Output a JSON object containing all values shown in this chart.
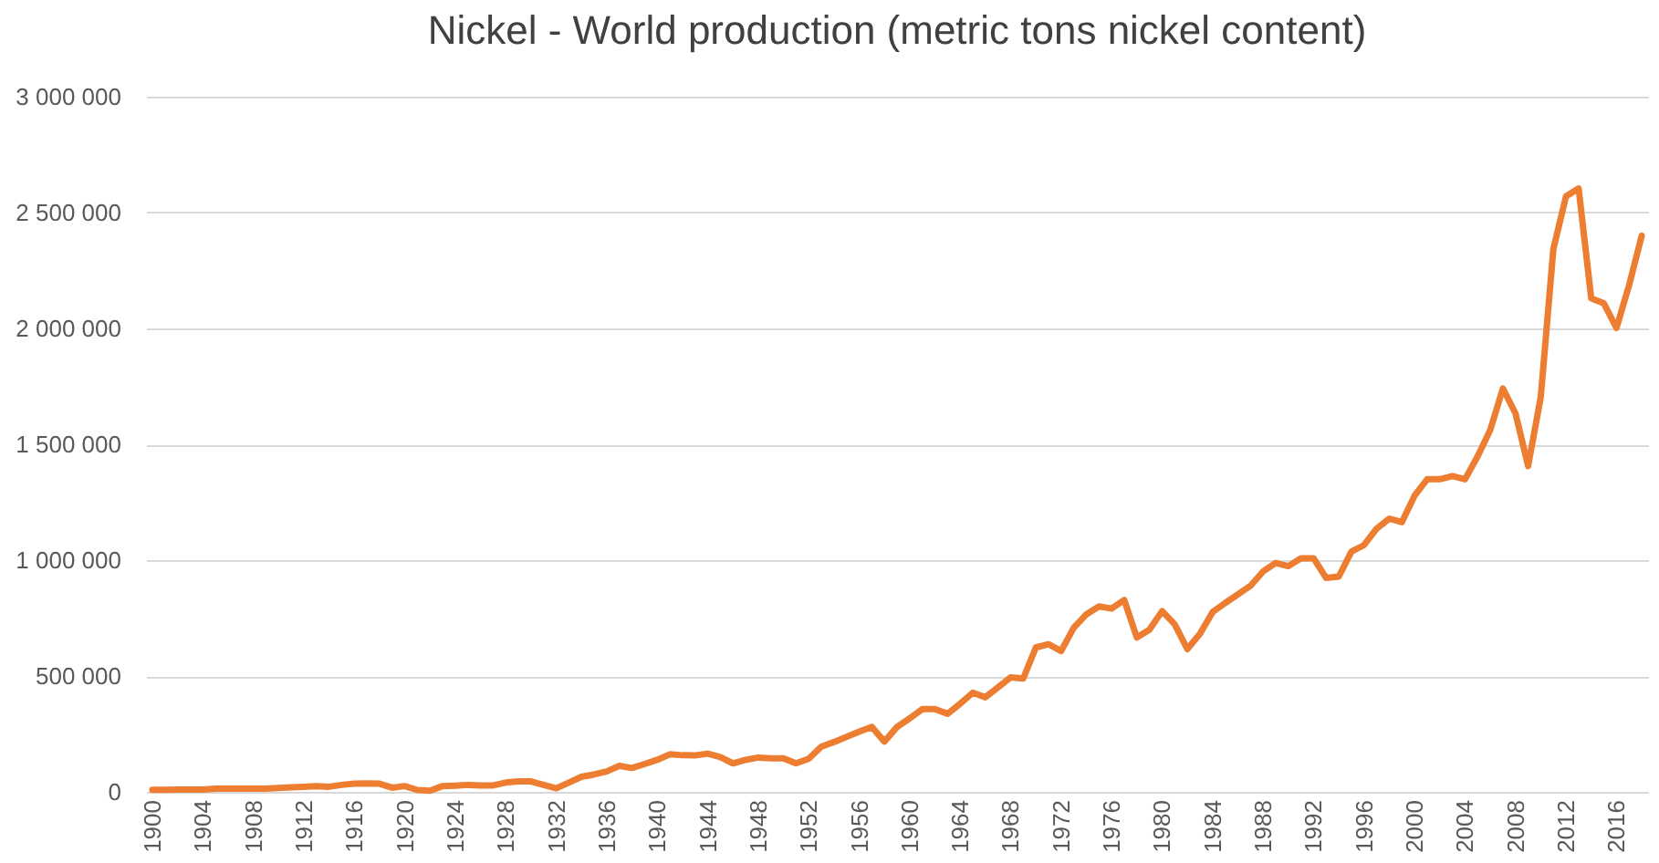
{
  "chart_data": {
    "type": "line",
    "title": "Nickel - World production (metric tons nickel content)",
    "x": [
      1900,
      1901,
      1902,
      1903,
      1904,
      1905,
      1906,
      1907,
      1908,
      1909,
      1910,
      1911,
      1912,
      1913,
      1914,
      1915,
      1916,
      1917,
      1918,
      1919,
      1920,
      1921,
      1922,
      1923,
      1924,
      1925,
      1926,
      1927,
      1928,
      1929,
      1930,
      1931,
      1932,
      1933,
      1934,
      1935,
      1936,
      1937,
      1938,
      1939,
      1940,
      1941,
      1942,
      1943,
      1944,
      1945,
      1946,
      1947,
      1948,
      1949,
      1950,
      1951,
      1952,
      1953,
      1954,
      1955,
      1956,
      1957,
      1958,
      1959,
      1960,
      1961,
      1962,
      1963,
      1964,
      1965,
      1966,
      1967,
      1968,
      1969,
      1970,
      1971,
      1972,
      1973,
      1974,
      1975,
      1976,
      1977,
      1978,
      1979,
      1980,
      1981,
      1982,
      1983,
      1984,
      1985,
      1986,
      1987,
      1988,
      1989,
      1990,
      1991,
      1992,
      1993,
      1994,
      1995,
      1996,
      1997,
      1998,
      1999,
      2000,
      2001,
      2002,
      2003,
      2004,
      2005,
      2006,
      2007,
      2008,
      2009,
      2010,
      2011,
      2012,
      2013,
      2014,
      2015,
      2016,
      2017,
      2018
    ],
    "series": [
      {
        "color": "#ed7d31",
        "values": [
          9000,
          9000,
          10000,
          10000,
          10000,
          14000,
          14000,
          14000,
          14000,
          14000,
          17000,
          20000,
          22000,
          25000,
          22000,
          30000,
          35000,
          36000,
          35000,
          18000,
          25000,
          8000,
          5000,
          25000,
          27000,
          30000,
          28000,
          28000,
          40000,
          45000,
          45000,
          30000,
          15000,
          40000,
          65000,
          75000,
          88000,
          112000,
          103000,
          120000,
          138000,
          162000,
          158000,
          157000,
          165000,
          150000,
          123000,
          138000,
          148000,
          145000,
          145000,
          123000,
          143000,
          195000,
          215000,
          237000,
          260000,
          280000,
          217000,
          280000,
          317000,
          357000,
          357000,
          337000,
          380000,
          428000,
          408000,
          451000,
          494000,
          489000,
          623000,
          637000,
          608000,
          708000,
          766000,
          800000,
          791000,
          828000,
          666000,
          700000,
          780000,
          723000,
          616000,
          682000,
          776000,
          815000,
          852000,
          889000,
          951000,
          988000,
          974000,
          1008000,
          1008000,
          923000,
          929000,
          1037000,
          1065000,
          1136000,
          1179000,
          1164000,
          1278000,
          1349000,
          1349000,
          1363000,
          1349000,
          1448000,
          1562000,
          1741000,
          1633000,
          1406000,
          1704000,
          2343000,
          2570000,
          2604000,
          2130000,
          2108000,
          2002000,
          2187000,
          2400000
        ]
      }
    ],
    "xlim": [
      1899.5,
      2018.5
    ],
    "xticks": [
      1900,
      1904,
      1908,
      1912,
      1916,
      1920,
      1924,
      1928,
      1932,
      1936,
      1940,
      1944,
      1948,
      1952,
      1956,
      1960,
      1964,
      1968,
      1972,
      1976,
      1980,
      1984,
      1988,
      1992,
      1996,
      2000,
      2004,
      2008,
      2012,
      2016
    ],
    "ylim": [
      0,
      3000000
    ],
    "yticks": [
      0,
      {
        "value": 500000,
        "label": "500 000"
      },
      {
        "value": 1000000,
        "label": "1 000 000"
      },
      {
        "value": 1500000,
        "label": "1 500 000"
      },
      {
        "value": 2000000,
        "label": "2 000 000"
      },
      {
        "value": 2500000,
        "label": "2 500 000"
      },
      {
        "value": 3000000,
        "label": "3 000 000"
      }
    ],
    "grid": "y",
    "marker": "none",
    "line_style": "solid"
  }
}
